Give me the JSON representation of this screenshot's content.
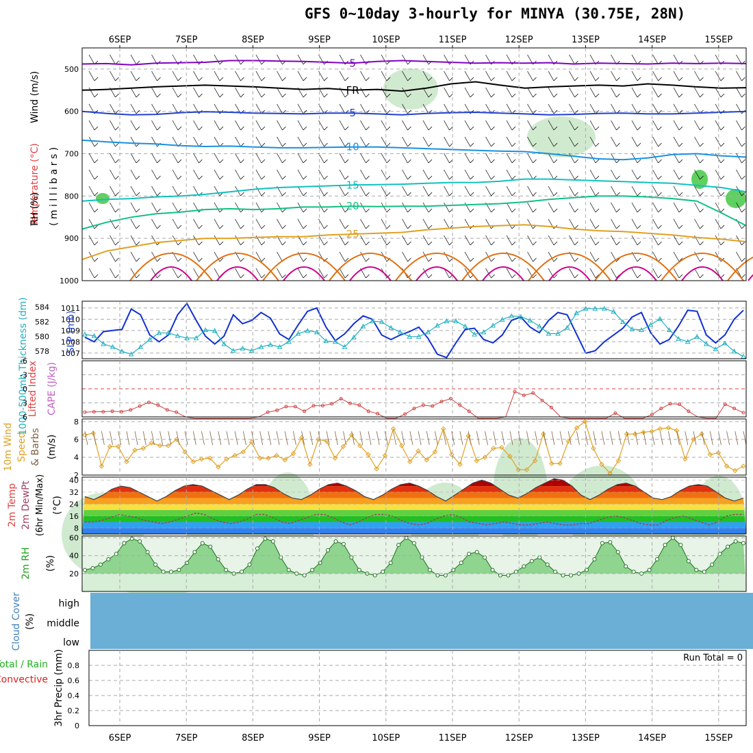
{
  "title": "GFS 0~10day 3-hourly for MINYA (30.75E, 28N)",
  "dates": [
    "6SEP",
    "7SEP",
    "8SEP",
    "9SEP",
    "10SEP",
    "11SEP",
    "12SEP",
    "13SEP",
    "14SEP",
    "15SEP"
  ],
  "colors": {
    "purple": "#8000c0",
    "black": "#000000",
    "blue": "#2040d0",
    "lightblue": "#1890e0",
    "cyan": "#10c0c0",
    "green": "#10c080",
    "orange": "#e0a020",
    "darkorange": "#e07010",
    "magenta": "#d0008c",
    "rhfill": "#c8e6c8"
  },
  "panels": {
    "upper": {
      "ylabels": [
        "Wind (m/s)",
        "Temperature (°C)",
        "RH (%)"
      ],
      "ylabel2": "( m i l l i b a r s )",
      "levels": [
        500,
        600,
        700,
        800,
        900,
        1000
      ],
      "contours": [
        {
          "label": "5",
          "color": "purple",
          "p": [
            488,
            487,
            490,
            486,
            485,
            484,
            480,
            480,
            481,
            482,
            484,
            486,
            482,
            480,
            482,
            484,
            486,
            485,
            486,
            485,
            488,
            486,
            487,
            488,
            486,
            487,
            486,
            487
          ]
        },
        {
          "label": "FR",
          "color": "black",
          "p": [
            550,
            548,
            545,
            542,
            540,
            538,
            540,
            542,
            545,
            548,
            546,
            550,
            548,
            552,
            545,
            535,
            530,
            538,
            545,
            542,
            540,
            538,
            540,
            535,
            538,
            542,
            545,
            544
          ]
        },
        {
          "label": "5",
          "color": "blue",
          "p": [
            600,
            605,
            608,
            607,
            603,
            601,
            602,
            604,
            605,
            606,
            604,
            604,
            606,
            608,
            605,
            603,
            602,
            604,
            606,
            608,
            607,
            605,
            604,
            606,
            606,
            604,
            602,
            600
          ]
        },
        {
          "label": "10",
          "color": "lightblue",
          "p": [
            668,
            672,
            675,
            677,
            681,
            683,
            682,
            684,
            686,
            686,
            685,
            684,
            684,
            686,
            688,
            690,
            692,
            694,
            695,
            700,
            706,
            712,
            714,
            710,
            702,
            700,
            705,
            708
          ]
        },
        {
          "label": "15",
          "color": "cyan",
          "p": [
            812,
            808,
            806,
            802,
            800,
            796,
            790,
            784,
            780,
            778,
            776,
            774,
            773,
            772,
            770,
            768,
            768,
            765,
            760,
            760,
            762,
            764,
            766,
            768,
            770,
            775,
            780,
            790
          ]
        },
        {
          "label": "20",
          "color": "green",
          "p": [
            878,
            862,
            850,
            842,
            838,
            832,
            830,
            832,
            830,
            826,
            826,
            824,
            825,
            824,
            824,
            822,
            820,
            818,
            814,
            808,
            804,
            800,
            800,
            802,
            806,
            812,
            840,
            870
          ]
        },
        {
          "label": "25",
          "color": "orange",
          "p": [
            950,
            930,
            920,
            910,
            905,
            900,
            900,
            898,
            896,
            896,
            892,
            890,
            888,
            886,
            880,
            876,
            872,
            870,
            868,
            872,
            878,
            882,
            884,
            888,
            892,
            898,
            902,
            908
          ]
        }
      ]
    },
    "pressure": {
      "ylabel_left": "1000-500mb Thickness (dm)",
      "ylabel_right": "SLP (mb)",
      "left_ticks": [
        578,
        580,
        582,
        584
      ],
      "right_ticks": [
        1007,
        1008,
        1009,
        1010,
        1011
      ],
      "slp": [
        1008.4,
        1008.0,
        1008.9,
        1009.0,
        1009.1,
        1010.9,
        1010.4,
        1008.6,
        1008.0,
        1008.6,
        1010.4,
        1011.4,
        1009.9,
        1008.5,
        1007.8,
        1008.5,
        1010.4,
        1009.6,
        1009.9,
        1010.6,
        1010.1,
        1008.7,
        1008.2,
        1009.5,
        1010.7,
        1011.0,
        1009.3,
        1008.1,
        1008.7,
        1009.6,
        1010.3,
        1010.0,
        1008.6,
        1008.2,
        1008.6,
        1008.9,
        1009.3,
        1008.3,
        1006.9,
        1006.6,
        1007.9,
        1009.1,
        1009.2,
        1008.2,
        1007.9,
        1008.6,
        1009.9,
        1010.2,
        1009.3,
        1008.8,
        1009.9,
        1010.6,
        1010.4,
        1008.7,
        1007.0,
        1007.2,
        1008.0,
        1008.6,
        1009.2,
        1010.2,
        1010.6,
        1008.8,
        1007.8,
        1008.2,
        1009.4,
        1010.8,
        1010.7,
        1008.6,
        1007.9,
        1008.6,
        1010.0,
        1010.8
      ],
      "thickness": [
        580.3,
        580.1,
        579.0,
        578.6,
        578.0,
        577.6,
        578.6,
        579.6,
        580.5,
        580.5,
        580.1,
        579.8,
        579.8,
        580.9,
        580.8,
        579.0,
        578.1,
        578.4,
        578.1,
        578.6,
        578.9,
        578.6,
        579.3,
        580.4,
        580.8,
        580.6,
        579.4,
        579.3,
        578.6,
        579.9,
        581.4,
        582.1,
        582.0,
        581.2,
        580.6,
        580.0,
        580.0,
        580.6,
        581.5,
        582.1,
        582.1,
        581.4,
        580.3,
        580.6,
        581.5,
        582.3,
        582.8,
        582.7,
        582.2,
        581.4,
        580.4,
        580.4,
        581.2,
        583.2,
        583.8,
        583.8,
        583.8,
        583.4,
        582.0,
        581.0,
        580.9,
        581.6,
        582.4,
        580.9,
        579.7,
        579.3,
        580.0,
        579.0,
        578.3,
        579.1,
        578.0,
        577.3
      ]
    },
    "cape": {
      "ylabel_left": "Lifted Index",
      "ylabel_right": "CAPE (J/kg)",
      "ticks": [
        -6,
        -3,
        0,
        3,
        6
      ],
      "li": [
        5.0,
        4.9,
        4.9,
        4.8,
        4.9,
        4.5,
        3.7,
        2.9,
        3.5,
        4.5,
        5.0,
        6.0,
        6.5,
        7.0,
        6.5,
        7.0,
        7.2,
        7.0,
        6.5,
        6.0,
        5.0,
        4.6,
        3.8,
        3.8,
        4.8,
        3.6,
        3.6,
        3.2,
        2.1,
        3.1,
        3.5,
        4.8,
        5.3,
        6.5,
        6.5,
        5.4,
        4.2,
        3.5,
        3.7,
        2.7,
        2.1,
        3.5,
        4.8,
        6.5,
        7.0,
        6.5,
        6.0,
        0.6,
        1.4,
        0.9,
        2.5,
        4.0,
        6.0,
        7.0,
        7.0,
        7.5,
        7.0,
        7.0,
        5.2,
        7.5,
        6.5,
        6.5,
        5.5,
        4.2,
        3.2,
        3.3,
        4.8,
        6.0,
        7.0,
        7.0,
        3.3,
        4.2,
        5.1
      ]
    },
    "wind10m": {
      "ylabel": "10m Wind Speed & Barbs",
      "unit": "(m/s)",
      "ticks": [
        2,
        4,
        6,
        8
      ],
      "speed": [
        6.5,
        6.7,
        3.0,
        5.2,
        5.2,
        3.5,
        4.8,
        5.0,
        5.6,
        5.3,
        5.3,
        6.0,
        4.6,
        3.5,
        3.8,
        3.9,
        2.9,
        3.8,
        4.2,
        4.6,
        5.7,
        3.9,
        3.9,
        4.2,
        3.7,
        4.4,
        6.2,
        3.2,
        6.0,
        5.8,
        3.9,
        5.2,
        6.5,
        5.3,
        4.3,
        2.7,
        4.2,
        7.2,
        5.3,
        3.5,
        4.7,
        3.7,
        4.6,
        7.2,
        4.3,
        3.2,
        6.4,
        3.6,
        4.0,
        5.0,
        5.1,
        4.1,
        2.6,
        2.6,
        3.6,
        6.6,
        3.3,
        3.3,
        5.8,
        7.3,
        8.0,
        5.0,
        3.2,
        2.2,
        3.6,
        6.6,
        6.6,
        6.8,
        6.9,
        7.2,
        7.3,
        7.0,
        3.8,
        6.0,
        6.6,
        4.3,
        4.5,
        3.0,
        2.5,
        3.0
      ]
    },
    "temp": {
      "ylabel": "2m Temp 2m DewPt (6hr Min/Max)",
      "unit": "(°C)",
      "ticks": [
        8,
        16,
        24,
        32,
        40
      ],
      "temp": [
        29,
        27,
        30,
        34,
        36,
        35,
        32,
        29,
        26,
        29,
        33,
        36,
        37,
        36,
        33,
        30,
        27,
        30,
        34,
        37,
        37,
        35,
        31,
        28,
        27,
        30,
        34,
        37,
        38,
        36,
        33,
        29,
        27,
        30,
        34,
        37,
        38,
        36,
        33,
        29,
        26,
        30,
        34,
        38,
        40,
        38,
        34,
        30,
        28,
        31,
        35,
        38,
        41,
        40,
        36,
        30,
        27,
        30,
        34,
        37,
        38,
        36,
        32,
        28,
        27,
        29,
        33,
        36,
        37,
        36,
        32,
        28,
        26,
        28
      ],
      "dewpt": [
        12,
        12,
        13,
        15,
        17,
        16,
        15,
        13,
        12,
        11,
        12,
        14,
        16,
        18,
        17,
        14,
        12,
        11,
        12,
        14,
        17,
        17,
        15,
        12,
        11,
        13,
        15,
        17,
        17,
        15,
        12,
        10,
        12,
        15,
        17,
        17,
        16,
        13,
        11,
        10,
        11,
        14,
        16,
        17,
        15,
        12,
        11,
        10,
        11,
        12,
        11,
        10,
        10,
        11,
        12,
        11,
        10,
        10,
        11,
        11,
        13,
        15,
        16,
        15,
        13,
        11,
        10,
        10,
        13,
        15,
        16,
        14,
        12,
        10,
        12,
        16,
        17,
        17
      ]
    },
    "rh": {
      "ylabel": "2m RH",
      "unit": "(%)",
      "ticks": [
        20,
        40,
        60
      ],
      "rh": [
        24,
        26,
        30,
        36,
        42,
        54,
        59,
        56,
        44,
        30,
        22,
        22,
        24,
        32,
        44,
        54,
        50,
        36,
        24,
        20,
        22,
        30,
        48,
        59,
        56,
        38,
        24,
        20,
        18,
        24,
        32,
        46,
        56,
        53,
        38,
        24,
        20,
        18,
        22,
        32,
        52,
        60,
        54,
        38,
        24,
        18,
        18,
        24,
        32,
        42,
        44,
        38,
        24,
        18,
        18,
        22,
        28,
        34,
        38,
        30,
        22,
        18,
        18,
        20,
        24,
        36,
        54,
        55,
        44,
        28,
        22,
        20,
        24,
        36,
        52,
        60,
        52,
        34,
        24,
        22,
        30,
        42,
        50,
        56,
        54
      ]
    },
    "cloud": {
      "ylabel": "Cloud Cover",
      "unit": "(%)",
      "levels": [
        "high",
        "middle",
        "low"
      ]
    },
    "precip": {
      "ylabel": "3hr Precip (mm)",
      "legend": "Total / Rain",
      "legend2": "Convective",
      "run_total": "Run Total = 0",
      "ticks": [
        "0",
        "0.2",
        "0.4",
        "0.6",
        "0.8"
      ]
    }
  },
  "chart_data": [
    {
      "type": "line",
      "title": "GFS 0~10day 3-hourly for MINYA (30.75E, 28N)",
      "xlabel": "",
      "ylabel": "millibars",
      "x": [
        "6SEP",
        "7SEP",
        "8SEP",
        "9SEP",
        "10SEP",
        "11SEP",
        "12SEP",
        "13SEP",
        "14SEP",
        "15SEP"
      ],
      "ylim": [
        1000,
        450
      ],
      "series": [
        {
          "name": "5"
        },
        {
          "name": "FR"
        },
        {
          "name": "5"
        },
        {
          "name": "10"
        },
        {
          "name": "15"
        },
        {
          "name": "20"
        },
        {
          "name": "25"
        }
      ]
    },
    {
      "type": "line",
      "ylabel": "SLP (mb)",
      "ylim": [
        1006.5,
        1011.6
      ],
      "series": [
        {
          "name": "SLP"
        }
      ]
    },
    {
      "type": "line",
      "ylabel": "Lifted Index",
      "ylim": [
        6,
        -6
      ],
      "series": [
        {
          "name": "Lifted Index"
        }
      ]
    },
    {
      "type": "line",
      "ylabel": "10m Wind Speed & Barbs (m/s)",
      "ylim": [
        2,
        8.3
      ],
      "series": [
        {
          "name": "10m Wind Speed"
        }
      ]
    },
    {
      "type": "area",
      "ylabel": "2m Temp 2m DewPt (°C)",
      "ylim": [
        4,
        42
      ],
      "series": [
        {
          "name": "2m Temp"
        },
        {
          "name": "2m DewPt"
        }
      ]
    },
    {
      "type": "area",
      "ylabel": "2m RH (%)",
      "ylim": [
        0,
        62
      ],
      "series": [
        {
          "name": "2m RH"
        }
      ]
    },
    {
      "type": "bar",
      "ylabel": "3hr Precip (mm)",
      "ylim": [
        0,
        1
      ],
      "series": [
        {
          "name": "Total / Rain"
        },
        {
          "name": "Convective"
        }
      ]
    }
  ]
}
